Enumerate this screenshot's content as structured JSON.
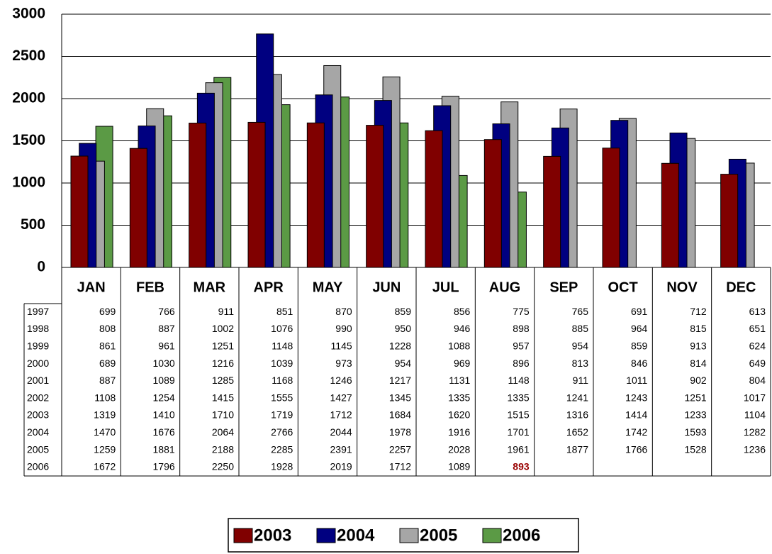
{
  "chart_data": {
    "type": "bar",
    "categories": [
      "JAN",
      "FEB",
      "MAR",
      "APR",
      "MAY",
      "JUN",
      "JUL",
      "AUG",
      "SEP",
      "OCT",
      "NOV",
      "DEC"
    ],
    "series": [
      {
        "name": "2003",
        "color": "#800000",
        "values": [
          1319,
          1410,
          1710,
          1719,
          1712,
          1684,
          1620,
          1515,
          1316,
          1414,
          1233,
          1104
        ]
      },
      {
        "name": "2004",
        "color": "#000080",
        "values": [
          1470,
          1676,
          2064,
          2766,
          2044,
          1978,
          1916,
          1701,
          1652,
          1742,
          1593,
          1282
        ]
      },
      {
        "name": "2005",
        "color": "#a6a6a6",
        "values": [
          1259,
          1881,
          2188,
          2285,
          2391,
          2257,
          2028,
          1961,
          1877,
          1766,
          1528,
          1236
        ]
      },
      {
        "name": "2006",
        "color": "#5b9a45",
        "values": [
          1672,
          1796,
          2250,
          1928,
          2019,
          1712,
          1089,
          893,
          null,
          null,
          null,
          null
        ]
      }
    ],
    "ylim": [
      0,
      3000
    ],
    "yticks": [
      0,
      500,
      1000,
      1500,
      2000,
      2500,
      3000
    ],
    "grid": true,
    "highlight": {
      "series": 3,
      "index": 7,
      "color": "#990000"
    },
    "data_table": {
      "rows": [
        {
          "label": "1997",
          "values": [
            699,
            766,
            911,
            851,
            870,
            859,
            856,
            775,
            765,
            691,
            712,
            613
          ]
        },
        {
          "label": "1998",
          "values": [
            808,
            887,
            1002,
            1076,
            990,
            950,
            946,
            898,
            885,
            964,
            815,
            651
          ]
        },
        {
          "label": "1999",
          "values": [
            861,
            961,
            1251,
            1148,
            1145,
            1228,
            1088,
            957,
            954,
            859,
            913,
            624
          ]
        },
        {
          "label": "2000",
          "values": [
            689,
            1030,
            1216,
            1039,
            973,
            954,
            969,
            896,
            813,
            846,
            814,
            649
          ]
        },
        {
          "label": "2001",
          "values": [
            887,
            1089,
            1285,
            1168,
            1246,
            1217,
            1131,
            1148,
            911,
            1011,
            902,
            804
          ]
        },
        {
          "label": "2002",
          "values": [
            1108,
            1254,
            1415,
            1555,
            1427,
            1345,
            1335,
            1335,
            1241,
            1243,
            1251,
            1017
          ]
        }
      ]
    }
  }
}
